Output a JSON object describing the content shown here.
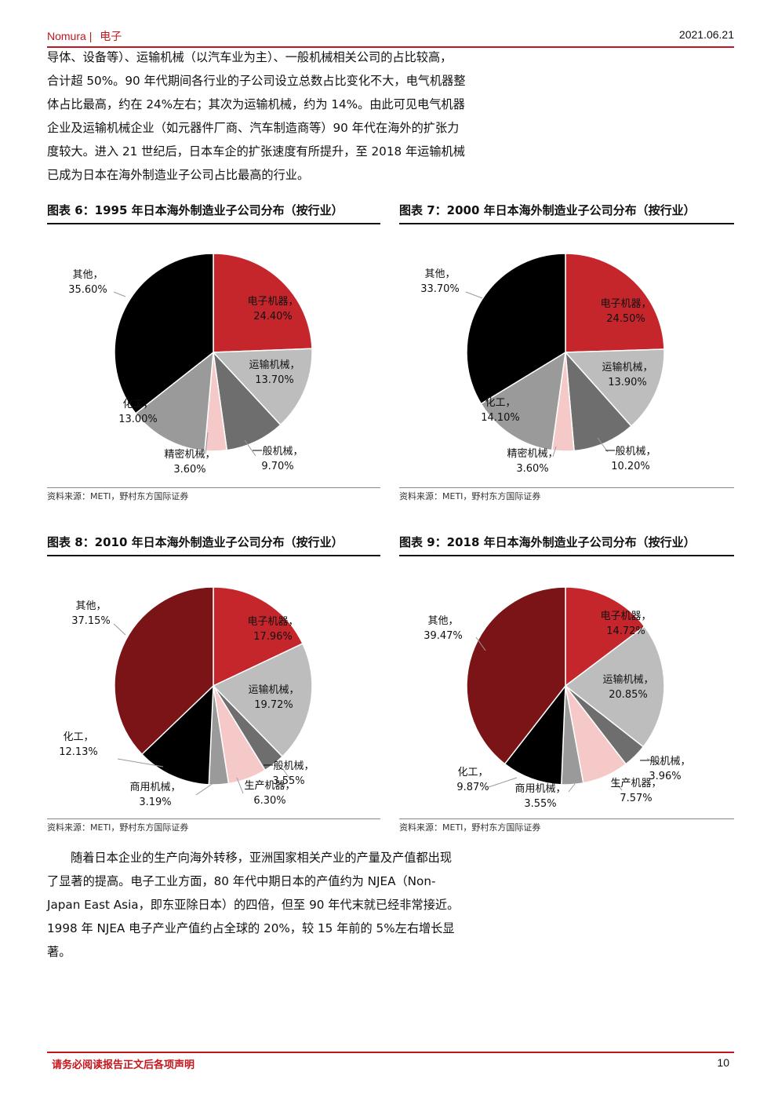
{
  "header": {
    "brand": "Nomura",
    "separator": "|",
    "section": "电子",
    "date": "2021.06.21"
  },
  "paragraph1": [
    "导体、设备等）、运输机械（以汽车业为主）、一般机械相关公司的占比较高，",
    "合计超 50%。90 年代期间各行业的子公司设立总数占比变化不大，电气机器整",
    "体占比最高，约在 24%左右；其次为运输机械，约为 14%。由此可见电气机器",
    "企业及运输机械企业（如元器件厂商、汽车制造商等）90 年代在海外的扩张力",
    "度较大。进入 21 世纪后，日本车企的扩张速度有所提升，至 2018 年运输机械",
    "已成为日本在海外制造业子公司占比最高的行业。"
  ],
  "paragraph2": [
    "随着日本企业的生产向海外转移，亚洲国家相关产业的产量及产值都出现",
    "了显著的提高。电子工业方面，80 年代中期日本的产值约为 NJEA（Non-",
    "Japan East Asia，即东亚除日本）的四倍，但至 90 年代末就已经非常接近。",
    "1998 年 NJEA 电子产业产值约占全球的 20%，较 15 年前的 5%左右增长显",
    "著。"
  ],
  "footer": {
    "disclaimer": "请务必阅读报告正文后各项声明",
    "page": "10"
  },
  "chart_data": [
    {
      "type": "pie",
      "title": "图表 6：1995 年日本海外制造业子公司分布（按行业）",
      "source": "资料来源：METI，野村东方国际证券",
      "slices": [
        {
          "label": "电子机器",
          "value": 24.4,
          "value_text": "24.40%",
          "color": "#c4262c"
        },
        {
          "label": "运输机械",
          "value": 13.7,
          "value_text": "13.70%",
          "color": "#bdbdbd"
        },
        {
          "label": "一般机械",
          "value": 9.7,
          "value_text": "9.70%",
          "color": "#6e6e6e"
        },
        {
          "label": "精密机械",
          "value": 3.6,
          "value_text": "3.60%",
          "color": "#f6c9c9"
        },
        {
          "label": "化工",
          "value": 13.0,
          "value_text": "13.00%",
          "color": "#9a9a9a"
        },
        {
          "label": "其他",
          "value": 35.6,
          "value_text": "35.60%",
          "color": "#000000"
        }
      ]
    },
    {
      "type": "pie",
      "title": "图表 7：2000 年日本海外制造业子公司分布（按行业）",
      "source": "资料来源：METI，野村东方国际证券",
      "slices": [
        {
          "label": "电子机器",
          "value": 24.5,
          "value_text": "24.50%",
          "color": "#c4262c"
        },
        {
          "label": "运输机械",
          "value": 13.9,
          "value_text": "13.90%",
          "color": "#bdbdbd"
        },
        {
          "label": "一般机械",
          "value": 10.2,
          "value_text": "10.20%",
          "color": "#6e6e6e"
        },
        {
          "label": "精密机械",
          "value": 3.6,
          "value_text": "3.60%",
          "color": "#f6c9c9"
        },
        {
          "label": "化工",
          "value": 14.1,
          "value_text": "14.10%",
          "color": "#9a9a9a"
        },
        {
          "label": "其他",
          "value": 33.7,
          "value_text": "33.70%",
          "color": "#000000"
        }
      ]
    },
    {
      "type": "pie",
      "title": "图表 8：2010 年日本海外制造业子公司分布（按行业）",
      "source": "资料来源：METI，野村东方国际证券",
      "slices": [
        {
          "label": "电子机器",
          "value": 17.96,
          "value_text": "17.96%",
          "color": "#c4262c"
        },
        {
          "label": "运输机械",
          "value": 19.72,
          "value_text": "19.72%",
          "color": "#bdbdbd"
        },
        {
          "label": "一般机械",
          "value": 3.55,
          "value_text": "3.55%",
          "color": "#6e6e6e"
        },
        {
          "label": "生产机器",
          "value": 6.3,
          "value_text": "6.30%",
          "color": "#f6c9c9"
        },
        {
          "label": "商用机械",
          "value": 3.19,
          "value_text": "3.19%",
          "color": "#9a9a9a"
        },
        {
          "label": "化工",
          "value": 12.13,
          "value_text": "12.13%",
          "color": "#000000"
        },
        {
          "label": "其他",
          "value": 37.15,
          "value_text": "37.15%",
          "color": "#7b1416"
        }
      ]
    },
    {
      "type": "pie",
      "title": "图表 9：2018 年日本海外制造业子公司分布（按行业）",
      "source": "资料来源：METI，野村东方国际证券",
      "slices": [
        {
          "label": "电子机器",
          "value": 14.72,
          "value_text": "14.72%",
          "color": "#c4262c"
        },
        {
          "label": "运输机械",
          "value": 20.85,
          "value_text": "20.85%",
          "color": "#bdbdbd"
        },
        {
          "label": "一般机械",
          "value": 3.96,
          "value_text": "3.96%",
          "color": "#6e6e6e"
        },
        {
          "label": "生产机器",
          "value": 7.57,
          "value_text": "7.57%",
          "color": "#f6c9c9"
        },
        {
          "label": "商用机械",
          "value": 3.55,
          "value_text": "3.55%",
          "color": "#9a9a9a"
        },
        {
          "label": "化工",
          "value": 9.87,
          "value_text": "9.87%",
          "color": "#000000"
        },
        {
          "label": "其他",
          "value": 39.47,
          "value_text": "39.47%",
          "color": "#7b1416"
        }
      ]
    }
  ]
}
